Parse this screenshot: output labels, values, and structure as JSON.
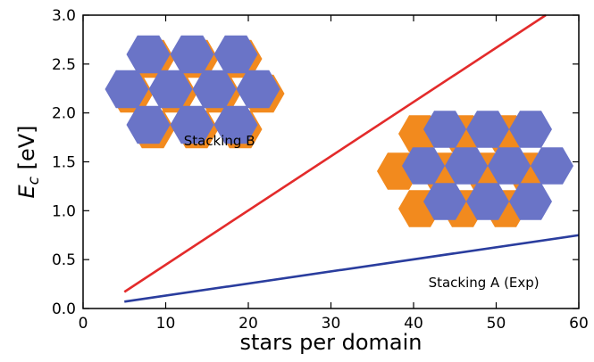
{
  "chart_data": {
    "type": "line",
    "xlabel": "stars per domain",
    "ylabel_main": "E",
    "ylabel_sub": "c",
    "ylabel_unit": " [eV]",
    "xlim": [
      0,
      60
    ],
    "ylim": [
      0,
      3.0
    ],
    "x_ticks": [
      "0",
      "10",
      "20",
      "30",
      "40",
      "50",
      "60"
    ],
    "y_ticks": [
      "0.0",
      "0.5",
      "1.0",
      "1.5",
      "2.0",
      "2.5",
      "3.0"
    ],
    "grid": false,
    "series": [
      {
        "color": "#e32b2b",
        "x": [
          5,
          56
        ],
        "y": [
          0.17,
          3.0
        ]
      },
      {
        "color": "#2a3d9e",
        "x": [
          5,
          60
        ],
        "y": [
          0.07,
          0.75
        ]
      }
    ],
    "annotations": [
      {
        "text": "Stacking B",
        "x": 16.5,
        "y": 1.67
      },
      {
        "text": "Stacking A (Exp)",
        "x": 48.5,
        "y": 0.22
      }
    ],
    "inset_colors": {
      "hex_fill": "#6a74c7",
      "hex_shadow": "#f28a1e"
    }
  }
}
